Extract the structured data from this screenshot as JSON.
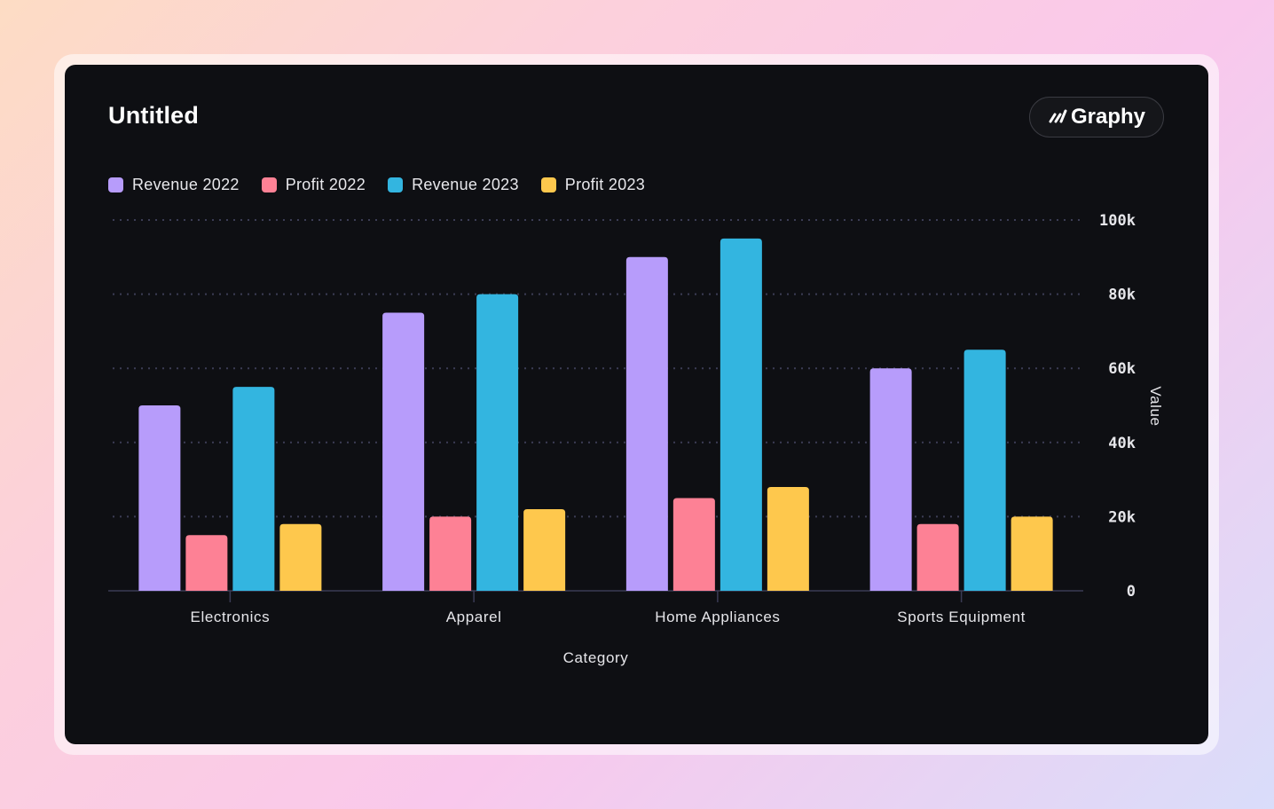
{
  "card": {
    "title": "Untitled",
    "brand": "Graphy"
  },
  "chart_data": {
    "type": "bar",
    "title": "Untitled",
    "xlabel": "Category",
    "ylabel": "Value",
    "categories": [
      "Electronics",
      "Apparel",
      "Home Appliances",
      "Sports Equipment"
    ],
    "series": [
      {
        "name": "Revenue 2022",
        "color": "#b79cfb",
        "values": [
          50000,
          75000,
          90000,
          60000
        ]
      },
      {
        "name": "Profit 2022",
        "color": "#fd8195",
        "values": [
          15000,
          20000,
          25000,
          18000
        ]
      },
      {
        "name": "Revenue 2023",
        "color": "#33b5e0",
        "values": [
          55000,
          80000,
          95000,
          65000
        ]
      },
      {
        "name": "Profit 2023",
        "color": "#fec84d",
        "values": [
          18000,
          22000,
          28000,
          20000
        ]
      }
    ],
    "ylim": [
      0,
      100000
    ],
    "y_ticks": [
      "0",
      "20k",
      "40k",
      "60k",
      "80k",
      "100k"
    ],
    "y_tick_values": [
      0,
      20000,
      40000,
      60000,
      80000,
      100000
    ],
    "y_axis_side": "right",
    "grid": true,
    "legend_position": "top-left"
  }
}
